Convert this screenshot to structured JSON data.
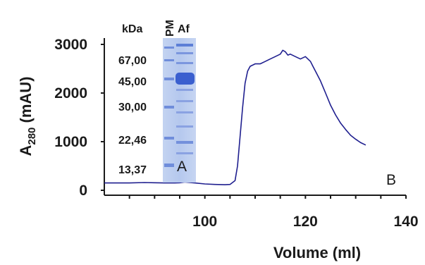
{
  "chart_data": {
    "type": "line",
    "xlabel": "Volume (ml)",
    "ylabel_main": "A",
    "ylabel_sub": "280",
    "ylabel_unit": " (mAU)",
    "xlim": [
      80,
      140
    ],
    "ylim": [
      0,
      3000
    ],
    "x_ticks": [
      "100",
      "120",
      "140"
    ],
    "y_ticks": [
      "0",
      "1000",
      "2000",
      "3000"
    ],
    "line_color": "#1f1f8f",
    "series": [
      {
        "x": [
          80,
          85,
          88,
          90,
          92,
          94,
          95,
          96,
          98,
          100,
          102,
          104,
          105,
          106,
          106.5,
          107,
          107.5,
          108,
          108.5,
          109,
          110,
          111,
          112,
          113,
          114,
          115,
          115.5,
          116,
          116.5,
          117,
          118,
          119,
          120,
          121,
          121.5,
          122,
          123,
          124,
          125,
          126,
          127,
          128,
          129,
          130,
          131,
          132
        ],
        "y": [
          150,
          150,
          160,
          155,
          150,
          150,
          155,
          170,
          150,
          130,
          120,
          115,
          120,
          200,
          500,
          1100,
          1700,
          2200,
          2450,
          2550,
          2600,
          2600,
          2650,
          2700,
          2750,
          2800,
          2880,
          2850,
          2780,
          2800,
          2750,
          2700,
          2750,
          2650,
          2550,
          2450,
          2250,
          2000,
          1750,
          1550,
          1380,
          1250,
          1130,
          1050,
          980,
          930
        ]
      }
    ],
    "annotation": "B"
  },
  "gel_inset": {
    "header_unit": "kDa",
    "lanes": [
      "PM",
      "Af"
    ],
    "markers": [
      "67,00",
      "45,00",
      "30,00",
      "22,46",
      "13,37"
    ],
    "panel_letter": "A",
    "gel_color": "#b9cbee",
    "band_color": "#3a5fcf"
  }
}
